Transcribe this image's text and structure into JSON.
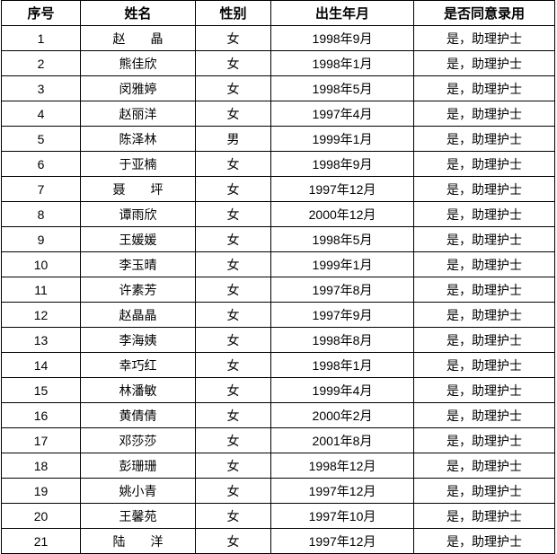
{
  "table": {
    "headers": [
      "序号",
      "姓名",
      "性别",
      "出生年月",
      "是否同意录用"
    ],
    "rows": [
      [
        "1",
        "赵　　晶",
        "女",
        "1998年9月",
        "是，助理护士"
      ],
      [
        "2",
        "熊佳欣",
        "女",
        "1998年1月",
        "是，助理护士"
      ],
      [
        "3",
        "闵雅婷",
        "女",
        "1998年5月",
        "是，助理护士"
      ],
      [
        "4",
        "赵丽洋",
        "女",
        "1997年4月",
        "是，助理护士"
      ],
      [
        "5",
        "陈泽林",
        "男",
        "1999年1月",
        "是，助理护士"
      ],
      [
        "6",
        "于亚楠",
        "女",
        "1998年9月",
        "是，助理护士"
      ],
      [
        "7",
        "聂　　坪",
        "女",
        "1997年12月",
        "是，助理护士"
      ],
      [
        "8",
        "谭雨欣",
        "女",
        "2000年12月",
        "是，助理护士"
      ],
      [
        "9",
        "王媛媛",
        "女",
        "1998年5月",
        "是，助理护士"
      ],
      [
        "10",
        "李玉晴",
        "女",
        "1999年1月",
        "是，助理护士"
      ],
      [
        "11",
        "许素芳",
        "女",
        "1997年8月",
        "是，助理护士"
      ],
      [
        "12",
        "赵晶晶",
        "女",
        "1997年9月",
        "是，助理护士"
      ],
      [
        "13",
        "李海姨",
        "女",
        "1998年8月",
        "是，助理护士"
      ],
      [
        "14",
        "幸巧红",
        "女",
        "1998年1月",
        "是，助理护士"
      ],
      [
        "15",
        "林潘敏",
        "女",
        "1999年4月",
        "是，助理护士"
      ],
      [
        "16",
        "黄倩倩",
        "女",
        "2000年2月",
        "是，助理护士"
      ],
      [
        "17",
        "邓莎莎",
        "女",
        "2001年8月",
        "是，助理护士"
      ],
      [
        "18",
        "彭珊珊",
        "女",
        "1998年12月",
        "是，助理护士"
      ],
      [
        "19",
        "姚小青",
        "女",
        "1997年12月",
        "是，助理护士"
      ],
      [
        "20",
        "王馨苑",
        "女",
        "1997年10月",
        "是，助理护士"
      ],
      [
        "21",
        "陆　　洋",
        "女",
        "1997年12月",
        "是，助理护士"
      ]
    ]
  }
}
